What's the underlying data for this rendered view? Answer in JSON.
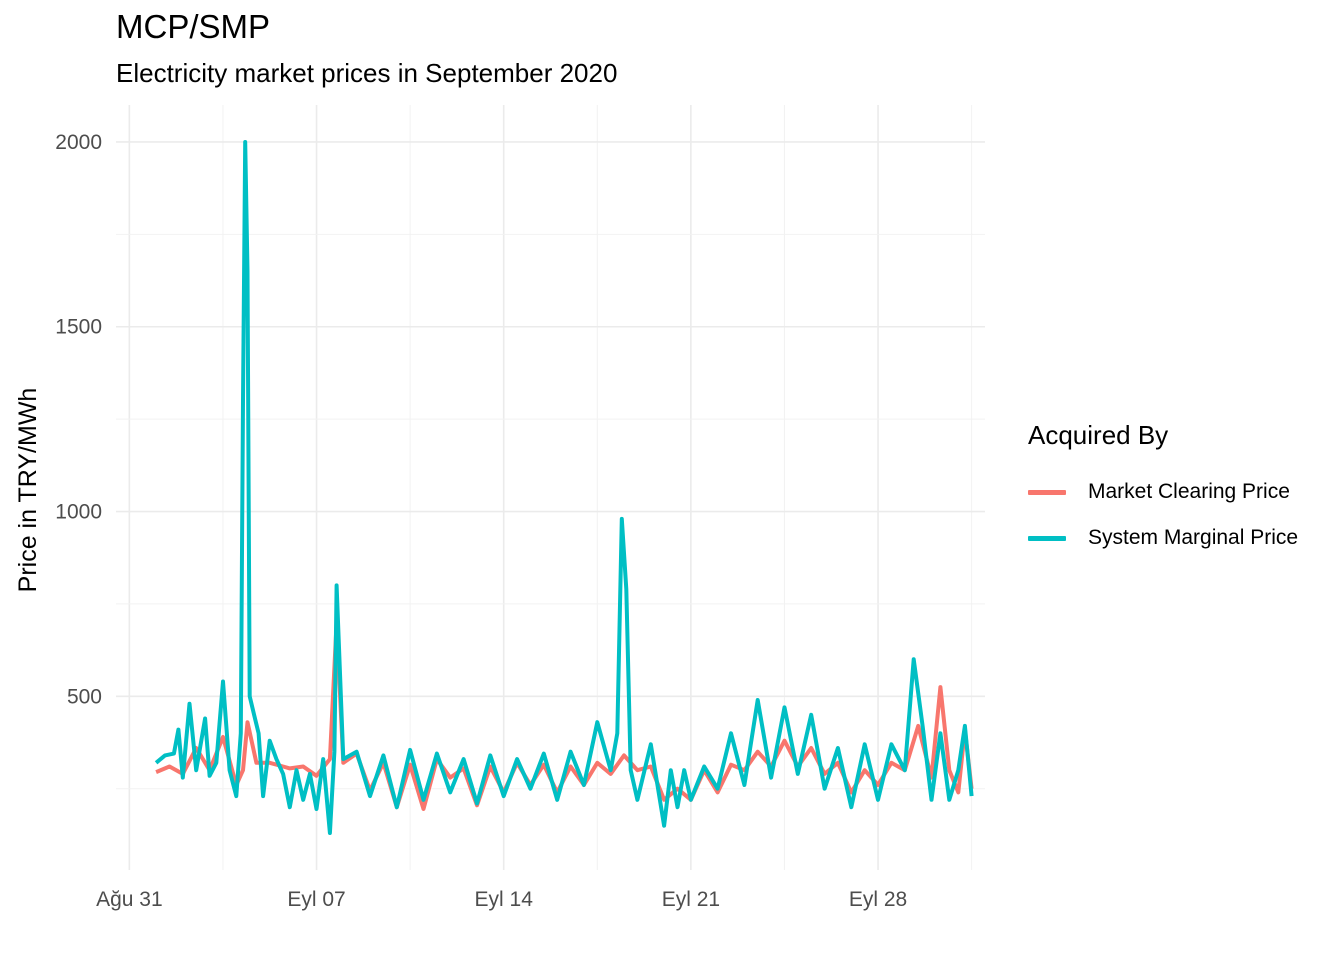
{
  "chart_data": {
    "type": "line",
    "title": "MCP/SMP",
    "subtitle": "Electricity market prices in September 2020",
    "xlabel": "",
    "ylabel": "Price in TRY/MWh",
    "x_unit": "date",
    "x_ticks": [
      {
        "date": "2020-08-31",
        "label": "Ağu 31"
      },
      {
        "date": "2020-09-07",
        "label": "Eyl 07"
      },
      {
        "date": "2020-09-14",
        "label": "Eyl 14"
      },
      {
        "date": "2020-09-21",
        "label": "Eyl 21"
      },
      {
        "date": "2020-09-28",
        "label": "Eyl 28"
      }
    ],
    "xlim": [
      "2020-08-30T12:00",
      "2020-10-02T00:00"
    ],
    "y_ticks": [
      500,
      1000,
      1500,
      2000
    ],
    "ylim": [
      30,
      2100
    ],
    "grid": true,
    "legend": {
      "title": "Acquired By",
      "position": "right"
    },
    "series": [
      {
        "name": "Market Clearing Price",
        "color": "#F8766D",
        "points": [
          [
            "2020-09-01T00:00",
            295
          ],
          [
            "2020-09-01T12:00",
            310
          ],
          [
            "2020-09-02T00:00",
            290
          ],
          [
            "2020-09-02T12:00",
            360
          ],
          [
            "2020-09-03T00:00",
            300
          ],
          [
            "2020-09-03T12:00",
            390
          ],
          [
            "2020-09-04T00:00",
            260
          ],
          [
            "2020-09-04T06:00",
            300
          ],
          [
            "2020-09-04T10:00",
            430
          ],
          [
            "2020-09-04T18:00",
            320
          ],
          [
            "2020-09-05T06:00",
            320
          ],
          [
            "2020-09-05T18:00",
            310
          ],
          [
            "2020-09-06T00:00",
            305
          ],
          [
            "2020-09-06T12:00",
            310
          ],
          [
            "2020-09-07T00:00",
            285
          ],
          [
            "2020-09-07T12:00",
            330
          ],
          [
            "2020-09-07T18:00",
            700
          ],
          [
            "2020-09-08T00:00",
            320
          ],
          [
            "2020-09-08T12:00",
            345
          ],
          [
            "2020-09-09T00:00",
            245
          ],
          [
            "2020-09-09T12:00",
            320
          ],
          [
            "2020-09-10T00:00",
            200
          ],
          [
            "2020-09-10T12:00",
            315
          ],
          [
            "2020-09-11T00:00",
            195
          ],
          [
            "2020-09-11T12:00",
            330
          ],
          [
            "2020-09-12T00:00",
            280
          ],
          [
            "2020-09-12T12:00",
            305
          ],
          [
            "2020-09-13T00:00",
            205
          ],
          [
            "2020-09-13T12:00",
            310
          ],
          [
            "2020-09-14T00:00",
            240
          ],
          [
            "2020-09-14T12:00",
            320
          ],
          [
            "2020-09-15T00:00",
            260
          ],
          [
            "2020-09-15T12:00",
            315
          ],
          [
            "2020-09-16T00:00",
            240
          ],
          [
            "2020-09-16T12:00",
            310
          ],
          [
            "2020-09-17T00:00",
            260
          ],
          [
            "2020-09-17T12:00",
            320
          ],
          [
            "2020-09-18T00:00",
            290
          ],
          [
            "2020-09-18T12:00",
            340
          ],
          [
            "2020-09-19T00:00",
            300
          ],
          [
            "2020-09-19T12:00",
            310
          ],
          [
            "2020-09-20T00:00",
            220
          ],
          [
            "2020-09-20T12:00",
            250
          ],
          [
            "2020-09-21T00:00",
            220
          ],
          [
            "2020-09-21T12:00",
            300
          ],
          [
            "2020-09-22T00:00",
            240
          ],
          [
            "2020-09-22T12:00",
            315
          ],
          [
            "2020-09-23T00:00",
            300
          ],
          [
            "2020-09-23T12:00",
            350
          ],
          [
            "2020-09-24T00:00",
            310
          ],
          [
            "2020-09-24T12:00",
            380
          ],
          [
            "2020-09-25T00:00",
            310
          ],
          [
            "2020-09-25T12:00",
            360
          ],
          [
            "2020-09-26T00:00",
            290
          ],
          [
            "2020-09-26T12:00",
            320
          ],
          [
            "2020-09-27T00:00",
            240
          ],
          [
            "2020-09-27T12:00",
            300
          ],
          [
            "2020-09-28T00:00",
            260
          ],
          [
            "2020-09-28T12:00",
            320
          ],
          [
            "2020-09-29T00:00",
            300
          ],
          [
            "2020-09-29T12:00",
            420
          ],
          [
            "2020-09-30T00:00",
            280
          ],
          [
            "2020-09-30T08:00",
            525
          ],
          [
            "2020-09-30T16:00",
            300
          ],
          [
            "2020-10-01T00:00",
            240
          ],
          [
            "2020-10-01T06:00",
            410
          ],
          [
            "2020-10-01T12:00",
            250
          ]
        ]
      },
      {
        "name": "System Marginal Price",
        "color": "#00BFC4",
        "points": [
          [
            "2020-09-01T00:00",
            320
          ],
          [
            "2020-09-01T08:00",
            340
          ],
          [
            "2020-09-01T16:00",
            345
          ],
          [
            "2020-09-01T20:00",
            410
          ],
          [
            "2020-09-02T00:00",
            280
          ],
          [
            "2020-09-02T06:00",
            480
          ],
          [
            "2020-09-02T12:00",
            300
          ],
          [
            "2020-09-02T20:00",
            440
          ],
          [
            "2020-09-03T00:00",
            285
          ],
          [
            "2020-09-03T06:00",
            320
          ],
          [
            "2020-09-03T12:00",
            540
          ],
          [
            "2020-09-03T18:00",
            300
          ],
          [
            "2020-09-04T00:00",
            230
          ],
          [
            "2020-09-04T04:00",
            400
          ],
          [
            "2020-09-04T06:00",
            1300
          ],
          [
            "2020-09-04T08:00",
            2000
          ],
          [
            "2020-09-04T10:00",
            1650
          ],
          [
            "2020-09-04T12:00",
            500
          ],
          [
            "2020-09-04T16:00",
            450
          ],
          [
            "2020-09-04T20:00",
            400
          ],
          [
            "2020-09-05T00:00",
            230
          ],
          [
            "2020-09-05T06:00",
            380
          ],
          [
            "2020-09-05T12:00",
            330
          ],
          [
            "2020-09-05T18:00",
            290
          ],
          [
            "2020-09-06T00:00",
            200
          ],
          [
            "2020-09-06T06:00",
            300
          ],
          [
            "2020-09-06T12:00",
            220
          ],
          [
            "2020-09-06T18:00",
            290
          ],
          [
            "2020-09-07T00:00",
            195
          ],
          [
            "2020-09-07T06:00",
            330
          ],
          [
            "2020-09-07T12:00",
            130
          ],
          [
            "2020-09-07T16:00",
            350
          ],
          [
            "2020-09-07T18:00",
            800
          ],
          [
            "2020-09-08T00:00",
            330
          ],
          [
            "2020-09-08T12:00",
            350
          ],
          [
            "2020-09-09T00:00",
            230
          ],
          [
            "2020-09-09T12:00",
            340
          ],
          [
            "2020-09-10T00:00",
            200
          ],
          [
            "2020-09-10T12:00",
            355
          ],
          [
            "2020-09-11T00:00",
            220
          ],
          [
            "2020-09-11T12:00",
            345
          ],
          [
            "2020-09-12T00:00",
            240
          ],
          [
            "2020-09-12T12:00",
            330
          ],
          [
            "2020-09-13T00:00",
            210
          ],
          [
            "2020-09-13T12:00",
            340
          ],
          [
            "2020-09-14T00:00",
            230
          ],
          [
            "2020-09-14T12:00",
            330
          ],
          [
            "2020-09-15T00:00",
            250
          ],
          [
            "2020-09-15T12:00",
            345
          ],
          [
            "2020-09-16T00:00",
            220
          ],
          [
            "2020-09-16T12:00",
            350
          ],
          [
            "2020-09-17T00:00",
            260
          ],
          [
            "2020-09-17T12:00",
            430
          ],
          [
            "2020-09-18T00:00",
            300
          ],
          [
            "2020-09-18T06:00",
            400
          ],
          [
            "2020-09-18T10:00",
            980
          ],
          [
            "2020-09-18T14:00",
            790
          ],
          [
            "2020-09-18T18:00",
            300
          ],
          [
            "2020-09-19T00:00",
            220
          ],
          [
            "2020-09-19T12:00",
            370
          ],
          [
            "2020-09-20T00:00",
            150
          ],
          [
            "2020-09-20T06:00",
            300
          ],
          [
            "2020-09-20T12:00",
            200
          ],
          [
            "2020-09-20T18:00",
            300
          ],
          [
            "2020-09-21T00:00",
            220
          ],
          [
            "2020-09-21T12:00",
            310
          ],
          [
            "2020-09-22T00:00",
            250
          ],
          [
            "2020-09-22T12:00",
            400
          ],
          [
            "2020-09-23T00:00",
            260
          ],
          [
            "2020-09-23T12:00",
            490
          ],
          [
            "2020-09-24T00:00",
            280
          ],
          [
            "2020-09-24T12:00",
            470
          ],
          [
            "2020-09-25T00:00",
            290
          ],
          [
            "2020-09-25T12:00",
            450
          ],
          [
            "2020-09-26T00:00",
            250
          ],
          [
            "2020-09-26T12:00",
            360
          ],
          [
            "2020-09-27T00:00",
            200
          ],
          [
            "2020-09-27T12:00",
            370
          ],
          [
            "2020-09-28T00:00",
            220
          ],
          [
            "2020-09-28T12:00",
            370
          ],
          [
            "2020-09-29T00:00",
            300
          ],
          [
            "2020-09-29T08:00",
            600
          ],
          [
            "2020-09-29T16:00",
            420
          ],
          [
            "2020-09-30T00:00",
            220
          ],
          [
            "2020-09-30T08:00",
            400
          ],
          [
            "2020-09-30T16:00",
            220
          ],
          [
            "2020-10-01T00:00",
            300
          ],
          [
            "2020-10-01T06:00",
            420
          ],
          [
            "2020-10-01T12:00",
            230
          ]
        ]
      }
    ]
  }
}
